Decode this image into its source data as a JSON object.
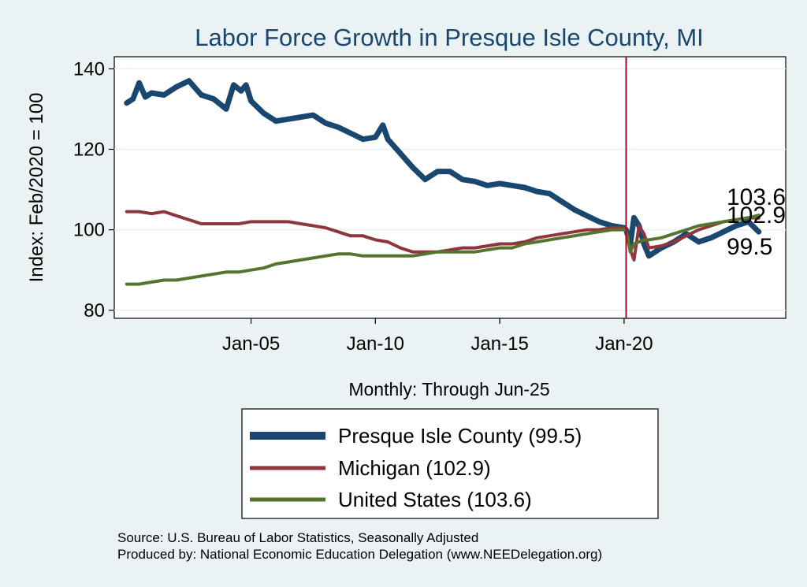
{
  "chart_data": {
    "type": "line",
    "title": "Labor Force Growth in Presque Isle  County, MI",
    "ylabel": "Index: Feb/2020 = 100",
    "xlabel": "Monthly: Through Jun-25",
    "x_tick_labels": [
      "Jan-05",
      "Jan-10",
      "Jan-15",
      "Jan-20"
    ],
    "x_tick_years": [
      2005,
      2010,
      2015,
      2020
    ],
    "y_ticks": [
      80,
      100,
      120,
      140
    ],
    "x_range": [
      1999.5,
      2026.5
    ],
    "ylim": [
      78,
      143
    ],
    "vline_year": 2020.083,
    "grid": true,
    "legend_placement": "bottom",
    "series": [
      {
        "name": "Presque Isle  County (99.5)",
        "end_value": "99.5",
        "color": "#1a476f",
        "points": [
          [
            2000.0,
            131.5
          ],
          [
            2000.25,
            132.5
          ],
          [
            2000.5,
            136.5
          ],
          [
            2000.75,
            133.0
          ],
          [
            2001.0,
            134.0
          ],
          [
            2001.5,
            133.5
          ],
          [
            2002.0,
            135.5
          ],
          [
            2002.5,
            137.0
          ],
          [
            2003.0,
            133.5
          ],
          [
            2003.5,
            132.5
          ],
          [
            2004.0,
            130.0
          ],
          [
            2004.3,
            136.0
          ],
          [
            2004.6,
            134.5
          ],
          [
            2004.8,
            136.0
          ],
          [
            2005.0,
            132.0
          ],
          [
            2005.5,
            129.0
          ],
          [
            2006.0,
            127.0
          ],
          [
            2006.5,
            127.5
          ],
          [
            2007.0,
            128.0
          ],
          [
            2007.5,
            128.5
          ],
          [
            2008.0,
            126.5
          ],
          [
            2008.5,
            125.5
          ],
          [
            2009.0,
            124.0
          ],
          [
            2009.5,
            122.5
          ],
          [
            2010.0,
            123.0
          ],
          [
            2010.3,
            126.0
          ],
          [
            2010.5,
            122.5
          ],
          [
            2011.0,
            119.0
          ],
          [
            2011.5,
            115.5
          ],
          [
            2012.0,
            112.5
          ],
          [
            2012.5,
            114.5
          ],
          [
            2013.0,
            114.5
          ],
          [
            2013.5,
            112.5
          ],
          [
            2014.0,
            112.0
          ],
          [
            2014.5,
            111.0
          ],
          [
            2015.0,
            111.5
          ],
          [
            2015.5,
            111.0
          ],
          [
            2016.0,
            110.5
          ],
          [
            2016.5,
            109.5
          ],
          [
            2017.0,
            109.0
          ],
          [
            2017.5,
            107.0
          ],
          [
            2018.0,
            105.0
          ],
          [
            2018.5,
            103.5
          ],
          [
            2019.0,
            102.0
          ],
          [
            2019.5,
            101.0
          ],
          [
            2020.0,
            100.5
          ],
          [
            2020.083,
            100.0
          ],
          [
            2020.25,
            96.5
          ],
          [
            2020.4,
            103.0
          ],
          [
            2020.6,
            101.0
          ],
          [
            2020.8,
            96.5
          ],
          [
            2021.0,
            93.5
          ],
          [
            2021.5,
            95.5
          ],
          [
            2022.0,
            97.0
          ],
          [
            2022.5,
            99.0
          ],
          [
            2023.0,
            97.0
          ],
          [
            2023.5,
            98.0
          ],
          [
            2024.0,
            99.5
          ],
          [
            2024.5,
            101.0
          ],
          [
            2025.0,
            102.0
          ],
          [
            2025.25,
            100.5
          ],
          [
            2025.417,
            99.5
          ]
        ]
      },
      {
        "name": "Michigan (102.9)",
        "end_value": "102.9",
        "color": "#90353b",
        "points": [
          [
            2000.0,
            104.5
          ],
          [
            2000.5,
            104.5
          ],
          [
            2001.0,
            104.0
          ],
          [
            2001.5,
            104.5
          ],
          [
            2002.0,
            103.5
          ],
          [
            2002.5,
            102.5
          ],
          [
            2003.0,
            101.5
          ],
          [
            2003.5,
            101.5
          ],
          [
            2004.0,
            101.5
          ],
          [
            2004.5,
            101.5
          ],
          [
            2005.0,
            102.0
          ],
          [
            2005.5,
            102.0
          ],
          [
            2006.0,
            102.0
          ],
          [
            2006.5,
            102.0
          ],
          [
            2007.0,
            101.5
          ],
          [
            2007.5,
            101.0
          ],
          [
            2008.0,
            100.5
          ],
          [
            2008.5,
            99.5
          ],
          [
            2009.0,
            98.5
          ],
          [
            2009.5,
            98.5
          ],
          [
            2010.0,
            97.5
          ],
          [
            2010.5,
            97.0
          ],
          [
            2011.0,
            95.5
          ],
          [
            2011.5,
            94.5
          ],
          [
            2012.0,
            94.5
          ],
          [
            2012.5,
            94.5
          ],
          [
            2013.0,
            95.0
          ],
          [
            2013.5,
            95.5
          ],
          [
            2014.0,
            95.5
          ],
          [
            2014.5,
            96.0
          ],
          [
            2015.0,
            96.5
          ],
          [
            2015.5,
            96.5
          ],
          [
            2016.0,
            97.0
          ],
          [
            2016.5,
            98.0
          ],
          [
            2017.0,
            98.5
          ],
          [
            2017.5,
            99.0
          ],
          [
            2018.0,
            99.5
          ],
          [
            2018.5,
            100.0
          ],
          [
            2019.0,
            100.0
          ],
          [
            2019.5,
            100.5
          ],
          [
            2020.0,
            100.5
          ],
          [
            2020.083,
            100.0
          ],
          [
            2020.25,
            95.0
          ],
          [
            2020.4,
            92.5
          ],
          [
            2020.6,
            101.0
          ],
          [
            2020.8,
            99.0
          ],
          [
            2021.0,
            95.5
          ],
          [
            2021.5,
            96.0
          ],
          [
            2022.0,
            97.0
          ],
          [
            2022.5,
            98.5
          ],
          [
            2023.0,
            100.0
          ],
          [
            2023.5,
            101.0
          ],
          [
            2024.0,
            102.0
          ],
          [
            2024.5,
            102.5
          ],
          [
            2025.0,
            103.0
          ],
          [
            2025.417,
            102.9
          ]
        ]
      },
      {
        "name": "United States (103.6)",
        "end_value": "103.6",
        "color": "#55752f",
        "points": [
          [
            2000.0,
            86.5
          ],
          [
            2000.5,
            86.5
          ],
          [
            2001.0,
            87.0
          ],
          [
            2001.5,
            87.5
          ],
          [
            2002.0,
            87.5
          ],
          [
            2002.5,
            88.0
          ],
          [
            2003.0,
            88.5
          ],
          [
            2003.5,
            89.0
          ],
          [
            2004.0,
            89.5
          ],
          [
            2004.5,
            89.5
          ],
          [
            2005.0,
            90.0
          ],
          [
            2005.5,
            90.5
          ],
          [
            2006.0,
            91.5
          ],
          [
            2006.5,
            92.0
          ],
          [
            2007.0,
            92.5
          ],
          [
            2007.5,
            93.0
          ],
          [
            2008.0,
            93.5
          ],
          [
            2008.5,
            94.0
          ],
          [
            2009.0,
            94.0
          ],
          [
            2009.5,
            93.5
          ],
          [
            2010.0,
            93.5
          ],
          [
            2010.5,
            93.5
          ],
          [
            2011.0,
            93.5
          ],
          [
            2011.5,
            93.5
          ],
          [
            2012.0,
            94.0
          ],
          [
            2012.5,
            94.5
          ],
          [
            2013.0,
            94.5
          ],
          [
            2013.5,
            94.5
          ],
          [
            2014.0,
            94.5
          ],
          [
            2014.5,
            95.0
          ],
          [
            2015.0,
            95.5
          ],
          [
            2015.5,
            95.5
          ],
          [
            2016.0,
            96.5
          ],
          [
            2016.5,
            97.0
          ],
          [
            2017.0,
            97.5
          ],
          [
            2017.5,
            98.0
          ],
          [
            2018.0,
            98.5
          ],
          [
            2018.5,
            99.0
          ],
          [
            2019.0,
            99.5
          ],
          [
            2019.5,
            100.0
          ],
          [
            2020.0,
            100.0
          ],
          [
            2020.083,
            100.0
          ],
          [
            2020.25,
            94.5
          ],
          [
            2020.4,
            96.5
          ],
          [
            2020.6,
            97.0
          ],
          [
            2020.8,
            97.5
          ],
          [
            2021.0,
            97.5
          ],
          [
            2021.5,
            98.0
          ],
          [
            2022.0,
            99.0
          ],
          [
            2022.5,
            100.0
          ],
          [
            2023.0,
            101.0
          ],
          [
            2023.5,
            101.5
          ],
          [
            2024.0,
            102.0
          ],
          [
            2024.5,
            102.5
          ],
          [
            2025.0,
            103.0
          ],
          [
            2025.417,
            103.6
          ]
        ]
      }
    ]
  },
  "source_line": "Source: U.S. Bureau of Labor Statistics, Seasonally Adjusted",
  "produced_line": "Produced by: National Economic Education Delegation (www.NEEDelegation.org)"
}
